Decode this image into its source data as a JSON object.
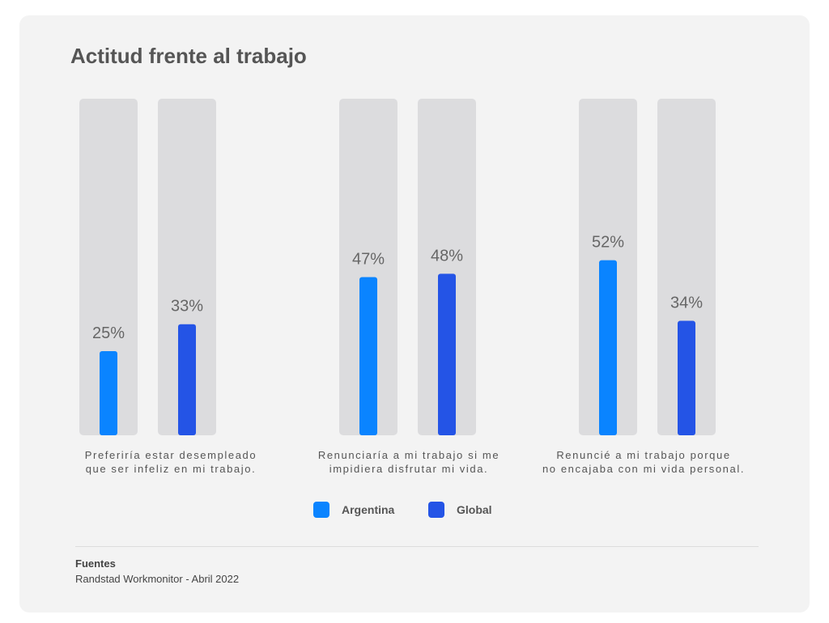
{
  "chart_data": {
    "type": "bar",
    "title": "Actitud frente al trabajo",
    "categories": [
      "Preferiría estar desempleado\nque ser infeliz en mi trabajo.",
      "Renunciaría a mi trabajo si me\nimpidiera disfrutar mi vida.",
      "Renuncié a mi trabajo porque\nno encajaba con mi vida personal."
    ],
    "series": [
      {
        "name": "Argentina",
        "color": "#0a84ff",
        "values": [
          25,
          47,
          52
        ],
        "value_labels": [
          "25%",
          "47%",
          "52%"
        ]
      },
      {
        "name": "Global",
        "color": "#2454e6",
        "values": [
          33,
          48,
          34
        ],
        "value_labels": [
          "33%",
          "48%",
          "34%"
        ]
      }
    ],
    "ylim": [
      0,
      100
    ]
  },
  "sources": {
    "title": "Fuentes",
    "text": "Randstad Workmonitor - Abril 2022"
  }
}
